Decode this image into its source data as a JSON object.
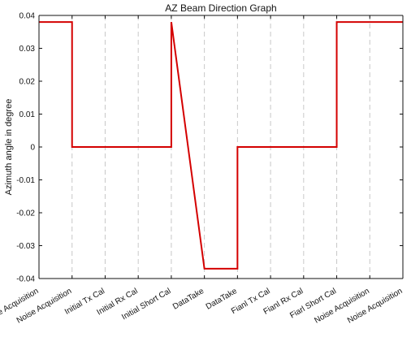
{
  "chart_data": {
    "type": "line",
    "title": "AZ Beam Direction Graph",
    "xlabel": "",
    "ylabel": "Azimuth angle in degree",
    "categories": [
      "Noise Acquisition",
      "Noise Acquisition",
      "Initial Tx Cal",
      "Initial Rx Cal",
      "Initial Short Cal",
      "DataTake",
      "DataTake",
      "Fianl Tx Cal",
      "Fianl Rx Cal",
      "Fiarl Short Cal",
      "Noise Acquisition",
      "Noise Acquisition"
    ],
    "ylim": [
      -0.04,
      0.04
    ],
    "yticks": [
      -0.04,
      -0.03,
      -0.02,
      -0.01,
      0,
      0.01,
      0.02,
      0.03,
      0.04
    ],
    "ytick_labels": [
      "-0.04",
      "-0.03",
      "-0.02",
      "-0.01",
      "0",
      "0.01",
      "0.02",
      "0.03",
      "0.04"
    ],
    "grid": {
      "x": true,
      "y": false
    },
    "series": [
      {
        "line_color": "#d40000",
        "points": [
          {
            "x": 0,
            "y": 0.038
          },
          {
            "x": 1,
            "y": 0.038
          },
          {
            "x": 1,
            "y": 0.0
          },
          {
            "x": 4,
            "y": 0.0
          },
          {
            "x": 4,
            "y": 0.038
          },
          {
            "x": 5,
            "y": -0.037
          },
          {
            "x": 6,
            "y": -0.037
          },
          {
            "x": 6,
            "y": 0.0
          },
          {
            "x": 9,
            "y": 0.0
          },
          {
            "x": 9,
            "y": 0.038
          },
          {
            "x": 11,
            "y": 0.038
          }
        ]
      }
    ]
  }
}
